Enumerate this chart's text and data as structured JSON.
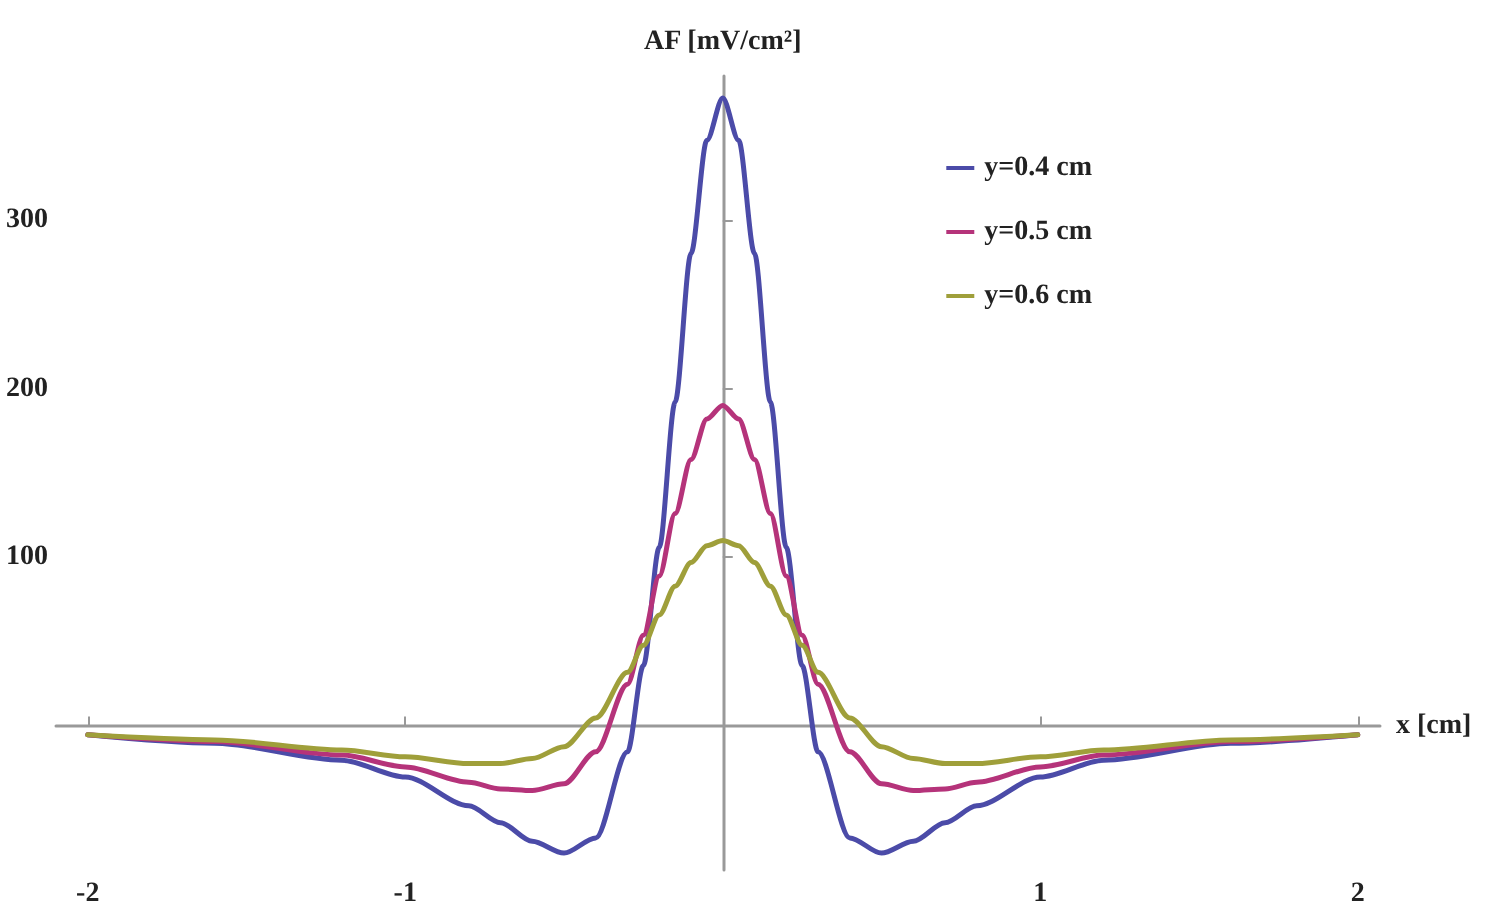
{
  "chart_data": {
    "type": "line",
    "xlabel": "x [cm]",
    "ylabel": "AF [mV/cm²]",
    "x": [
      -2,
      -1.6,
      -1.2,
      -1,
      -0.8,
      -0.7,
      -0.6,
      -0.5,
      -0.4,
      -0.3,
      -0.25,
      -0.2,
      -0.15,
      -0.1,
      -0.05,
      0,
      0.05,
      0.1,
      0.15,
      0.2,
      0.25,
      0.3,
      0.4,
      0.5,
      0.6,
      0.7,
      0.8,
      1,
      1.2,
      1.6,
      2
    ],
    "series": [
      {
        "name": "y=0.4 cm",
        "color": "#4b4ba8",
        "values": [
          -5,
          -10,
          -20,
          -30,
          -47,
          -57,
          -68,
          -75,
          -66,
          -15,
          36,
          106,
          192,
          280,
          347,
          372,
          347,
          280,
          192,
          106,
          36,
          -15,
          -66,
          -75,
          -68,
          -57,
          -47,
          -30,
          -20,
          -10,
          -5
        ]
      },
      {
        "name": "y=0.5 cm",
        "color": "#b5337a",
        "values": [
          -5,
          -9,
          -17,
          -24,
          -33,
          -37,
          -38,
          -34,
          -15,
          25,
          54,
          89,
          126,
          158,
          182,
          190,
          182,
          158,
          126,
          89,
          54,
          25,
          -15,
          -34,
          -38,
          -37,
          -33,
          -24,
          -17,
          -9,
          -5
        ]
      },
      {
        "name": "y=0.6 cm",
        "color": "#9f9f3a",
        "values": [
          -5,
          -8,
          -14,
          -18,
          -22,
          -22,
          -19,
          -12,
          5,
          32,
          48,
          66,
          83,
          97,
          107,
          110,
          107,
          97,
          83,
          66,
          48,
          32,
          5,
          -12,
          -19,
          -22,
          -22,
          -18,
          -14,
          -8,
          -5
        ]
      }
    ],
    "xlim": [
      -2.1,
      2.07
    ],
    "ylim": [
      -85,
      385
    ],
    "xticks": [
      -2,
      -1,
      1,
      2
    ],
    "yticks": [
      100,
      200,
      300
    ],
    "legend": "top right",
    "marker": "none",
    "line_style": "solid",
    "grid": false
  }
}
